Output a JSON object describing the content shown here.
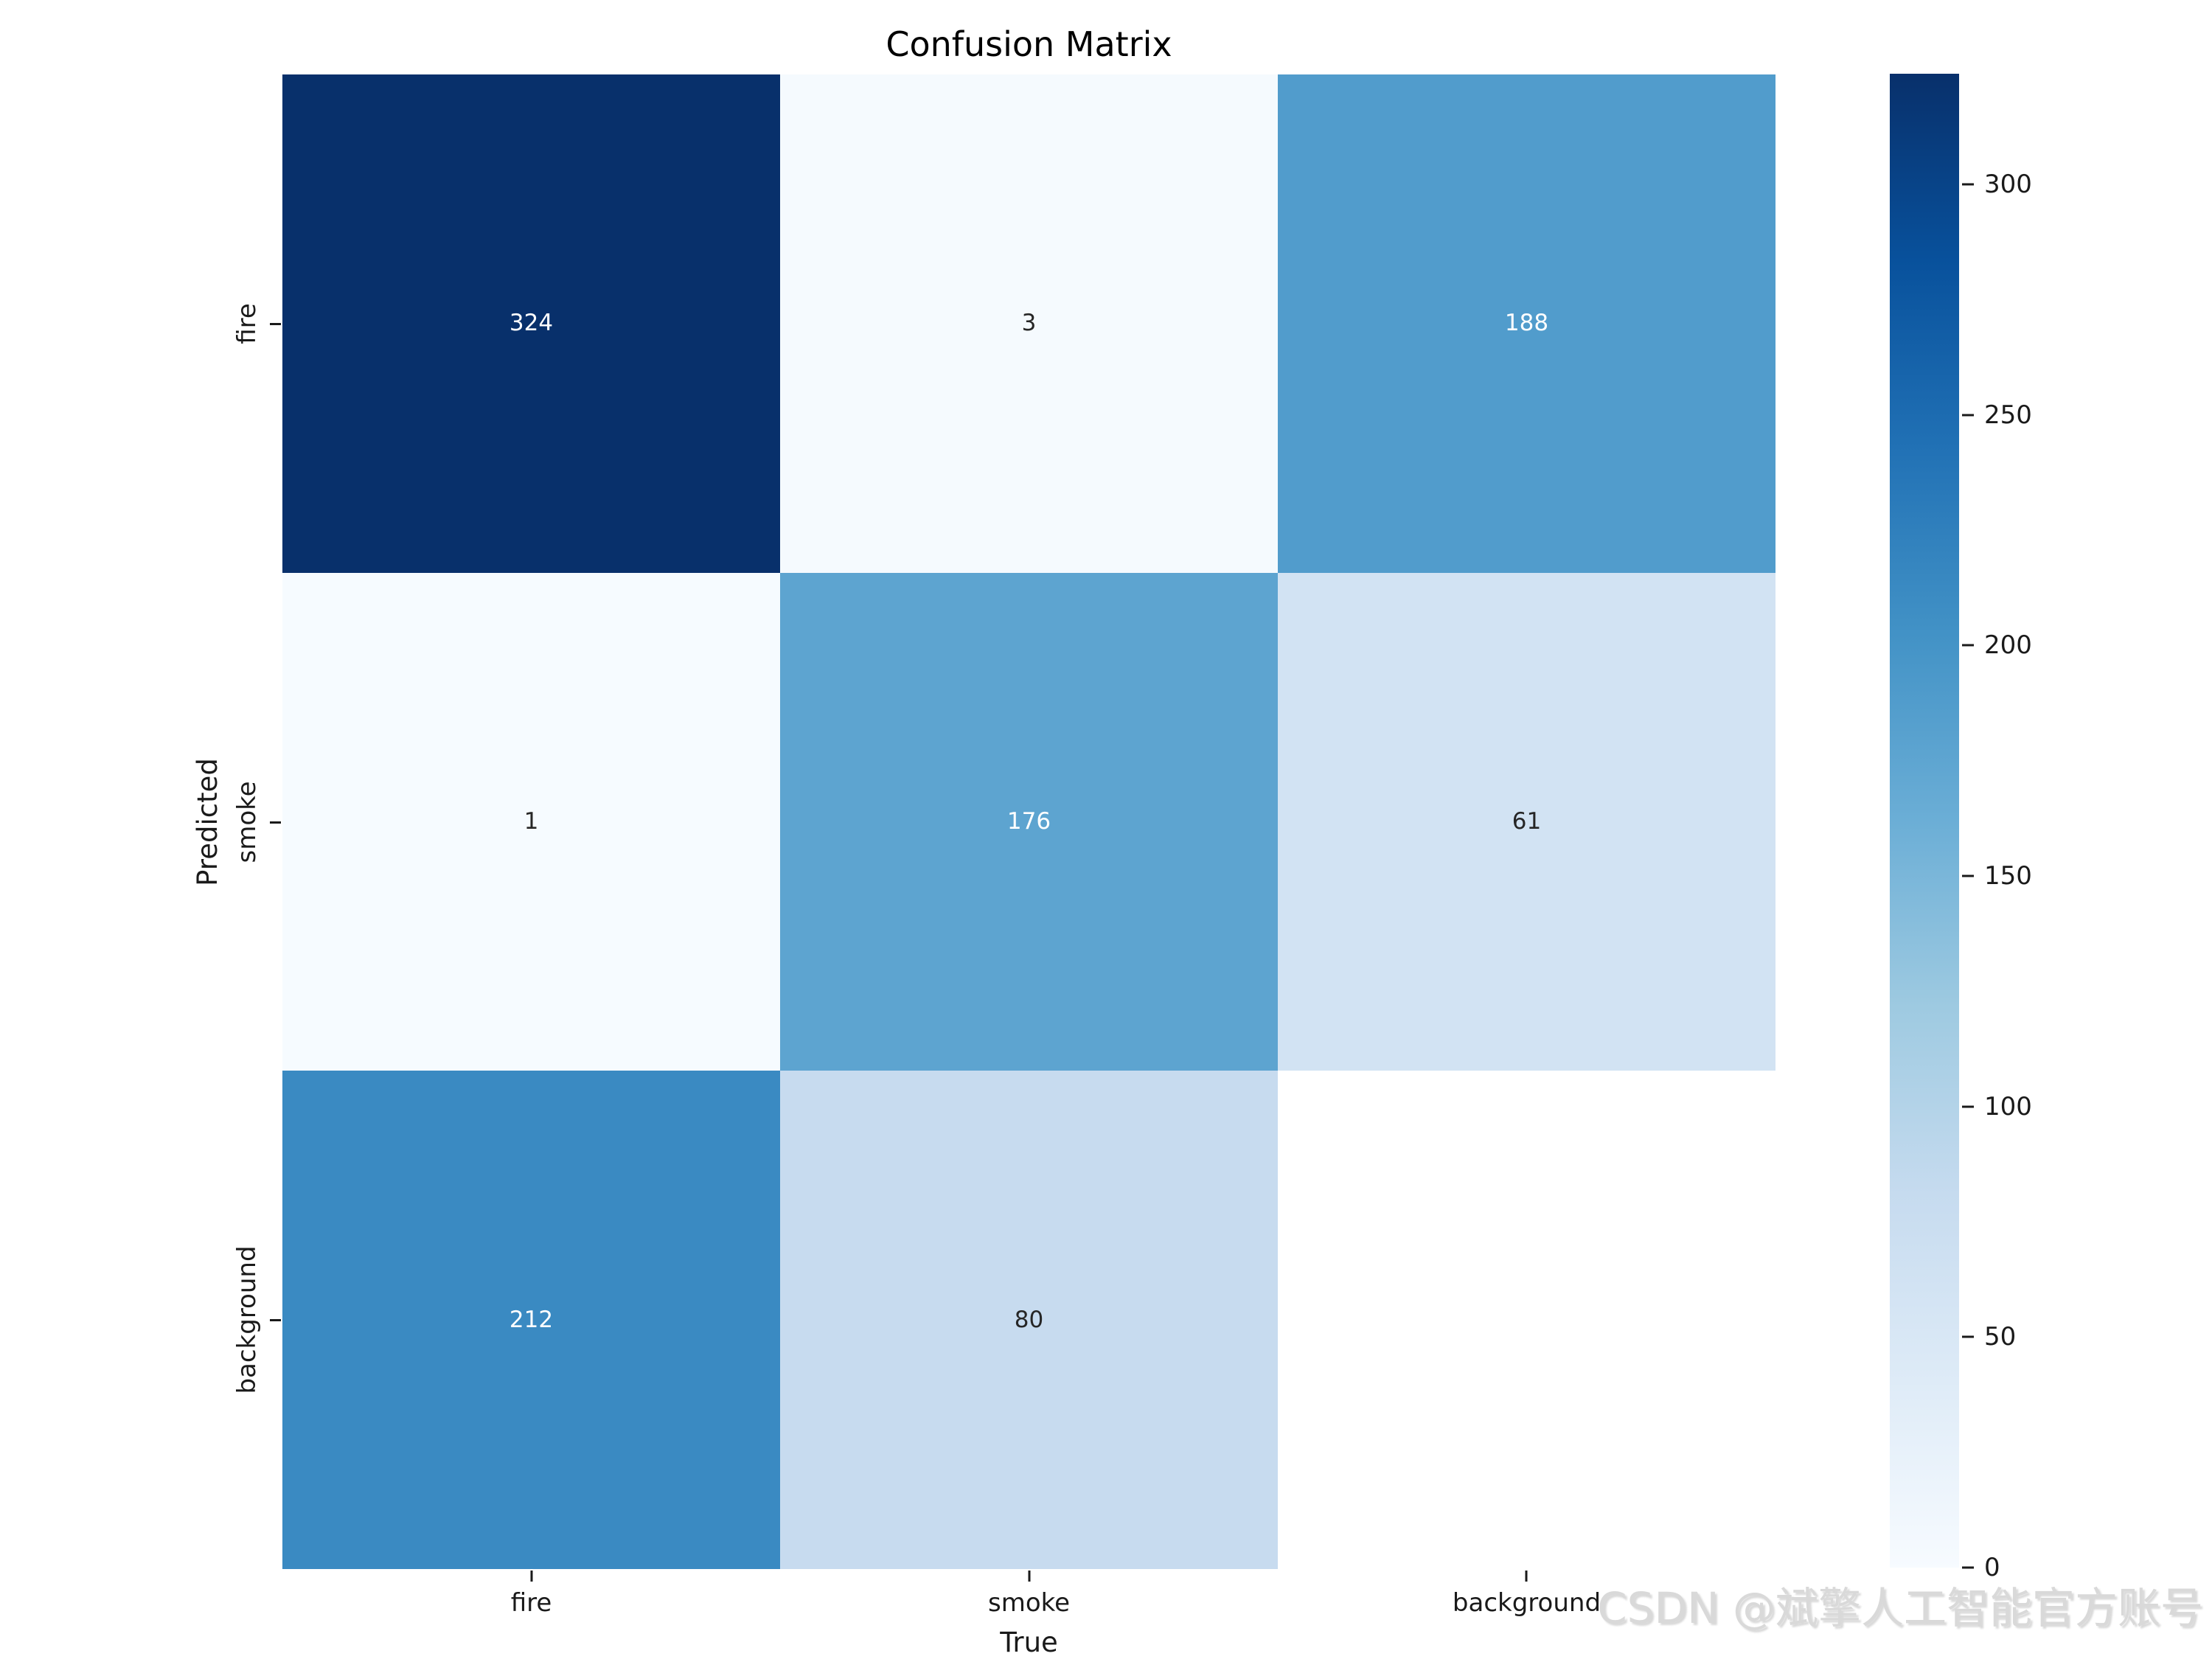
{
  "chart_data": {
    "type": "heatmap",
    "title": "Confusion Matrix",
    "xlabel": "True",
    "ylabel": "Predicted",
    "x_categories": [
      "fire",
      "smoke",
      "background"
    ],
    "y_categories": [
      "fire",
      "smoke",
      "background"
    ],
    "matrix": [
      [
        324,
        3,
        188
      ],
      [
        1,
        176,
        61
      ],
      [
        212,
        80,
        null
      ]
    ],
    "vmin": 0,
    "vmax": 324,
    "colormap": "Blues",
    "colormap_stops": [
      "#f7fbff",
      "#deebf7",
      "#c6dbef",
      "#9ecae1",
      "#6baed6",
      "#4292c6",
      "#2171b5",
      "#08519c",
      "#08306b"
    ],
    "empty_cell_color": "#ffffff",
    "annotation_color_dark": "#262626",
    "annotation_color_light": "#ffffff",
    "colorbar_ticks": [
      0,
      50,
      100,
      150,
      200,
      250,
      300
    ],
    "colorbar_position": "right",
    "grid": false
  },
  "watermark": {
    "text": "CSDN @斌擎人工智能官方账号",
    "color": "#d9d9d9"
  }
}
